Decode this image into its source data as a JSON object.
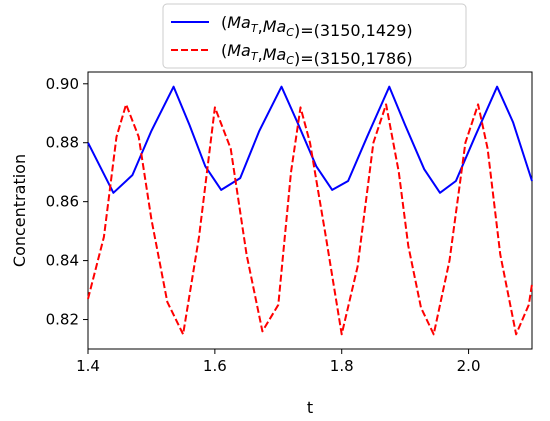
{
  "chart_data": {
    "type": "line",
    "title": "",
    "xlabel": "t",
    "ylabel": "Concentration",
    "xlim": [
      1.4,
      2.1
    ],
    "ylim": [
      0.81,
      0.904
    ],
    "x_ticks": [
      1.4,
      1.6,
      1.8,
      2.0
    ],
    "x_tick_labels": [
      "1.4",
      "1.6",
      "1.8",
      "2.0"
    ],
    "y_ticks": [
      0.82,
      0.84,
      0.86,
      0.88,
      0.9
    ],
    "y_tick_labels": [
      "0.82",
      "0.84",
      "0.86",
      "0.88",
      "0.90"
    ],
    "grid": false,
    "legend_position": "top-center-outside",
    "series": [
      {
        "name": "(Ma_T,Ma_C)=(3150,1429)",
        "color": "#0000ff",
        "line_style": "solid",
        "x": [
          1.4,
          1.44,
          1.47,
          1.5,
          1.535,
          1.56,
          1.585,
          1.61,
          1.64,
          1.67,
          1.705,
          1.73,
          1.76,
          1.785,
          1.81,
          1.84,
          1.875,
          1.9,
          1.93,
          1.955,
          1.98,
          2.01,
          2.045,
          2.07,
          2.1
        ],
        "y": [
          0.88,
          0.863,
          0.869,
          0.884,
          0.899,
          0.886,
          0.872,
          0.864,
          0.868,
          0.884,
          0.899,
          0.887,
          0.872,
          0.864,
          0.867,
          0.882,
          0.899,
          0.886,
          0.871,
          0.863,
          0.867,
          0.882,
          0.899,
          0.887,
          0.867
        ]
      },
      {
        "name": "(Ma_T,Ma_C)=(3150,1786)",
        "color": "#ff0000",
        "line_style": "dashed",
        "x": [
          1.4,
          1.425,
          1.445,
          1.46,
          1.48,
          1.5,
          1.525,
          1.55,
          1.575,
          1.6,
          1.625,
          1.65,
          1.675,
          1.7,
          1.72,
          1.735,
          1.75,
          1.775,
          1.8,
          1.825,
          1.85,
          1.87,
          1.89,
          1.905,
          1.925,
          1.945,
          1.97,
          1.995,
          2.015,
          2.03,
          2.05,
          2.075,
          2.095,
          2.1
        ],
        "y": [
          0.827,
          0.848,
          0.882,
          0.893,
          0.882,
          0.854,
          0.826,
          0.815,
          0.848,
          0.892,
          0.878,
          0.842,
          0.816,
          0.825,
          0.87,
          0.892,
          0.88,
          0.848,
          0.815,
          0.838,
          0.88,
          0.893,
          0.87,
          0.845,
          0.824,
          0.815,
          0.84,
          0.88,
          0.893,
          0.878,
          0.842,
          0.815,
          0.825,
          0.832
        ]
      }
    ]
  }
}
